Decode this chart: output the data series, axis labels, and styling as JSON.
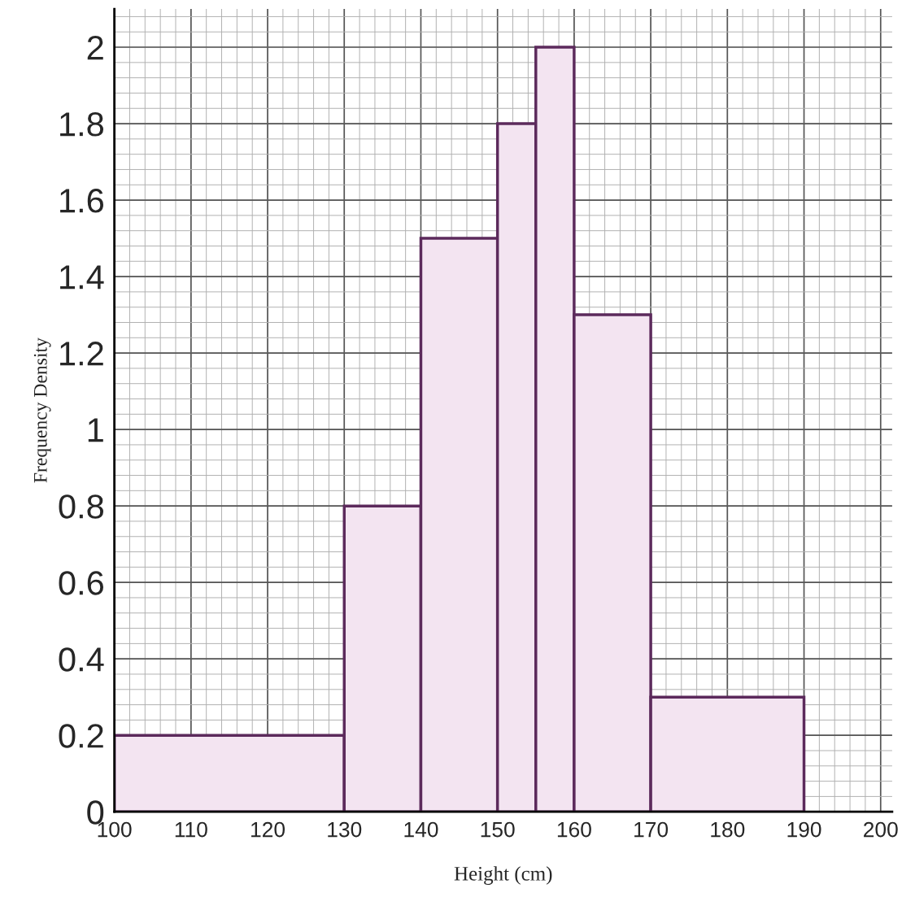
{
  "chart_data": {
    "type": "histogram",
    "xlabel": "Height (cm)",
    "ylabel": "Frequency Density",
    "bins": [
      100,
      130,
      140,
      150,
      155,
      160,
      170,
      190
    ],
    "values": [
      0.2,
      0.8,
      1.5,
      1.8,
      2,
      1.3,
      0.3
    ],
    "color": "#f3e4f1",
    "xlim": [
      100,
      201.5
    ],
    "ylim": [
      0,
      2.1
    ],
    "xticks": [
      100,
      110,
      120,
      130,
      140,
      150,
      160,
      170,
      180,
      190,
      200
    ],
    "yticks": [
      0,
      0.2,
      0.4,
      0.6,
      0.8,
      1,
      1.2,
      1.4,
      1.6,
      1.8,
      2
    ],
    "grid": true,
    "legend": false
  }
}
